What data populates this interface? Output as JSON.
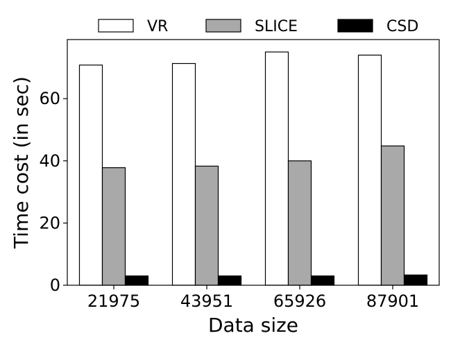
{
  "chart_data": {
    "type": "bar",
    "title": "",
    "xlabel": "Data size",
    "ylabel": "Time cost (in sec)",
    "categories": [
      "21975",
      "43951",
      "65926",
      "87901"
    ],
    "series": [
      {
        "name": "VR",
        "values": [
          70.8,
          71.3,
          75.0,
          74.0
        ],
        "color": "#ffffff"
      },
      {
        "name": "SLICE",
        "values": [
          37.8,
          38.3,
          40.0,
          44.8
        ],
        "color": "#a9a9a9"
      },
      {
        "name": "CSD",
        "values": [
          3.0,
          3.0,
          3.0,
          3.3
        ],
        "color": "#000000"
      }
    ],
    "ylim": [
      0,
      79
    ],
    "yticks": [
      0,
      20,
      40,
      60
    ],
    "legend_position": "top",
    "grid": false
  }
}
